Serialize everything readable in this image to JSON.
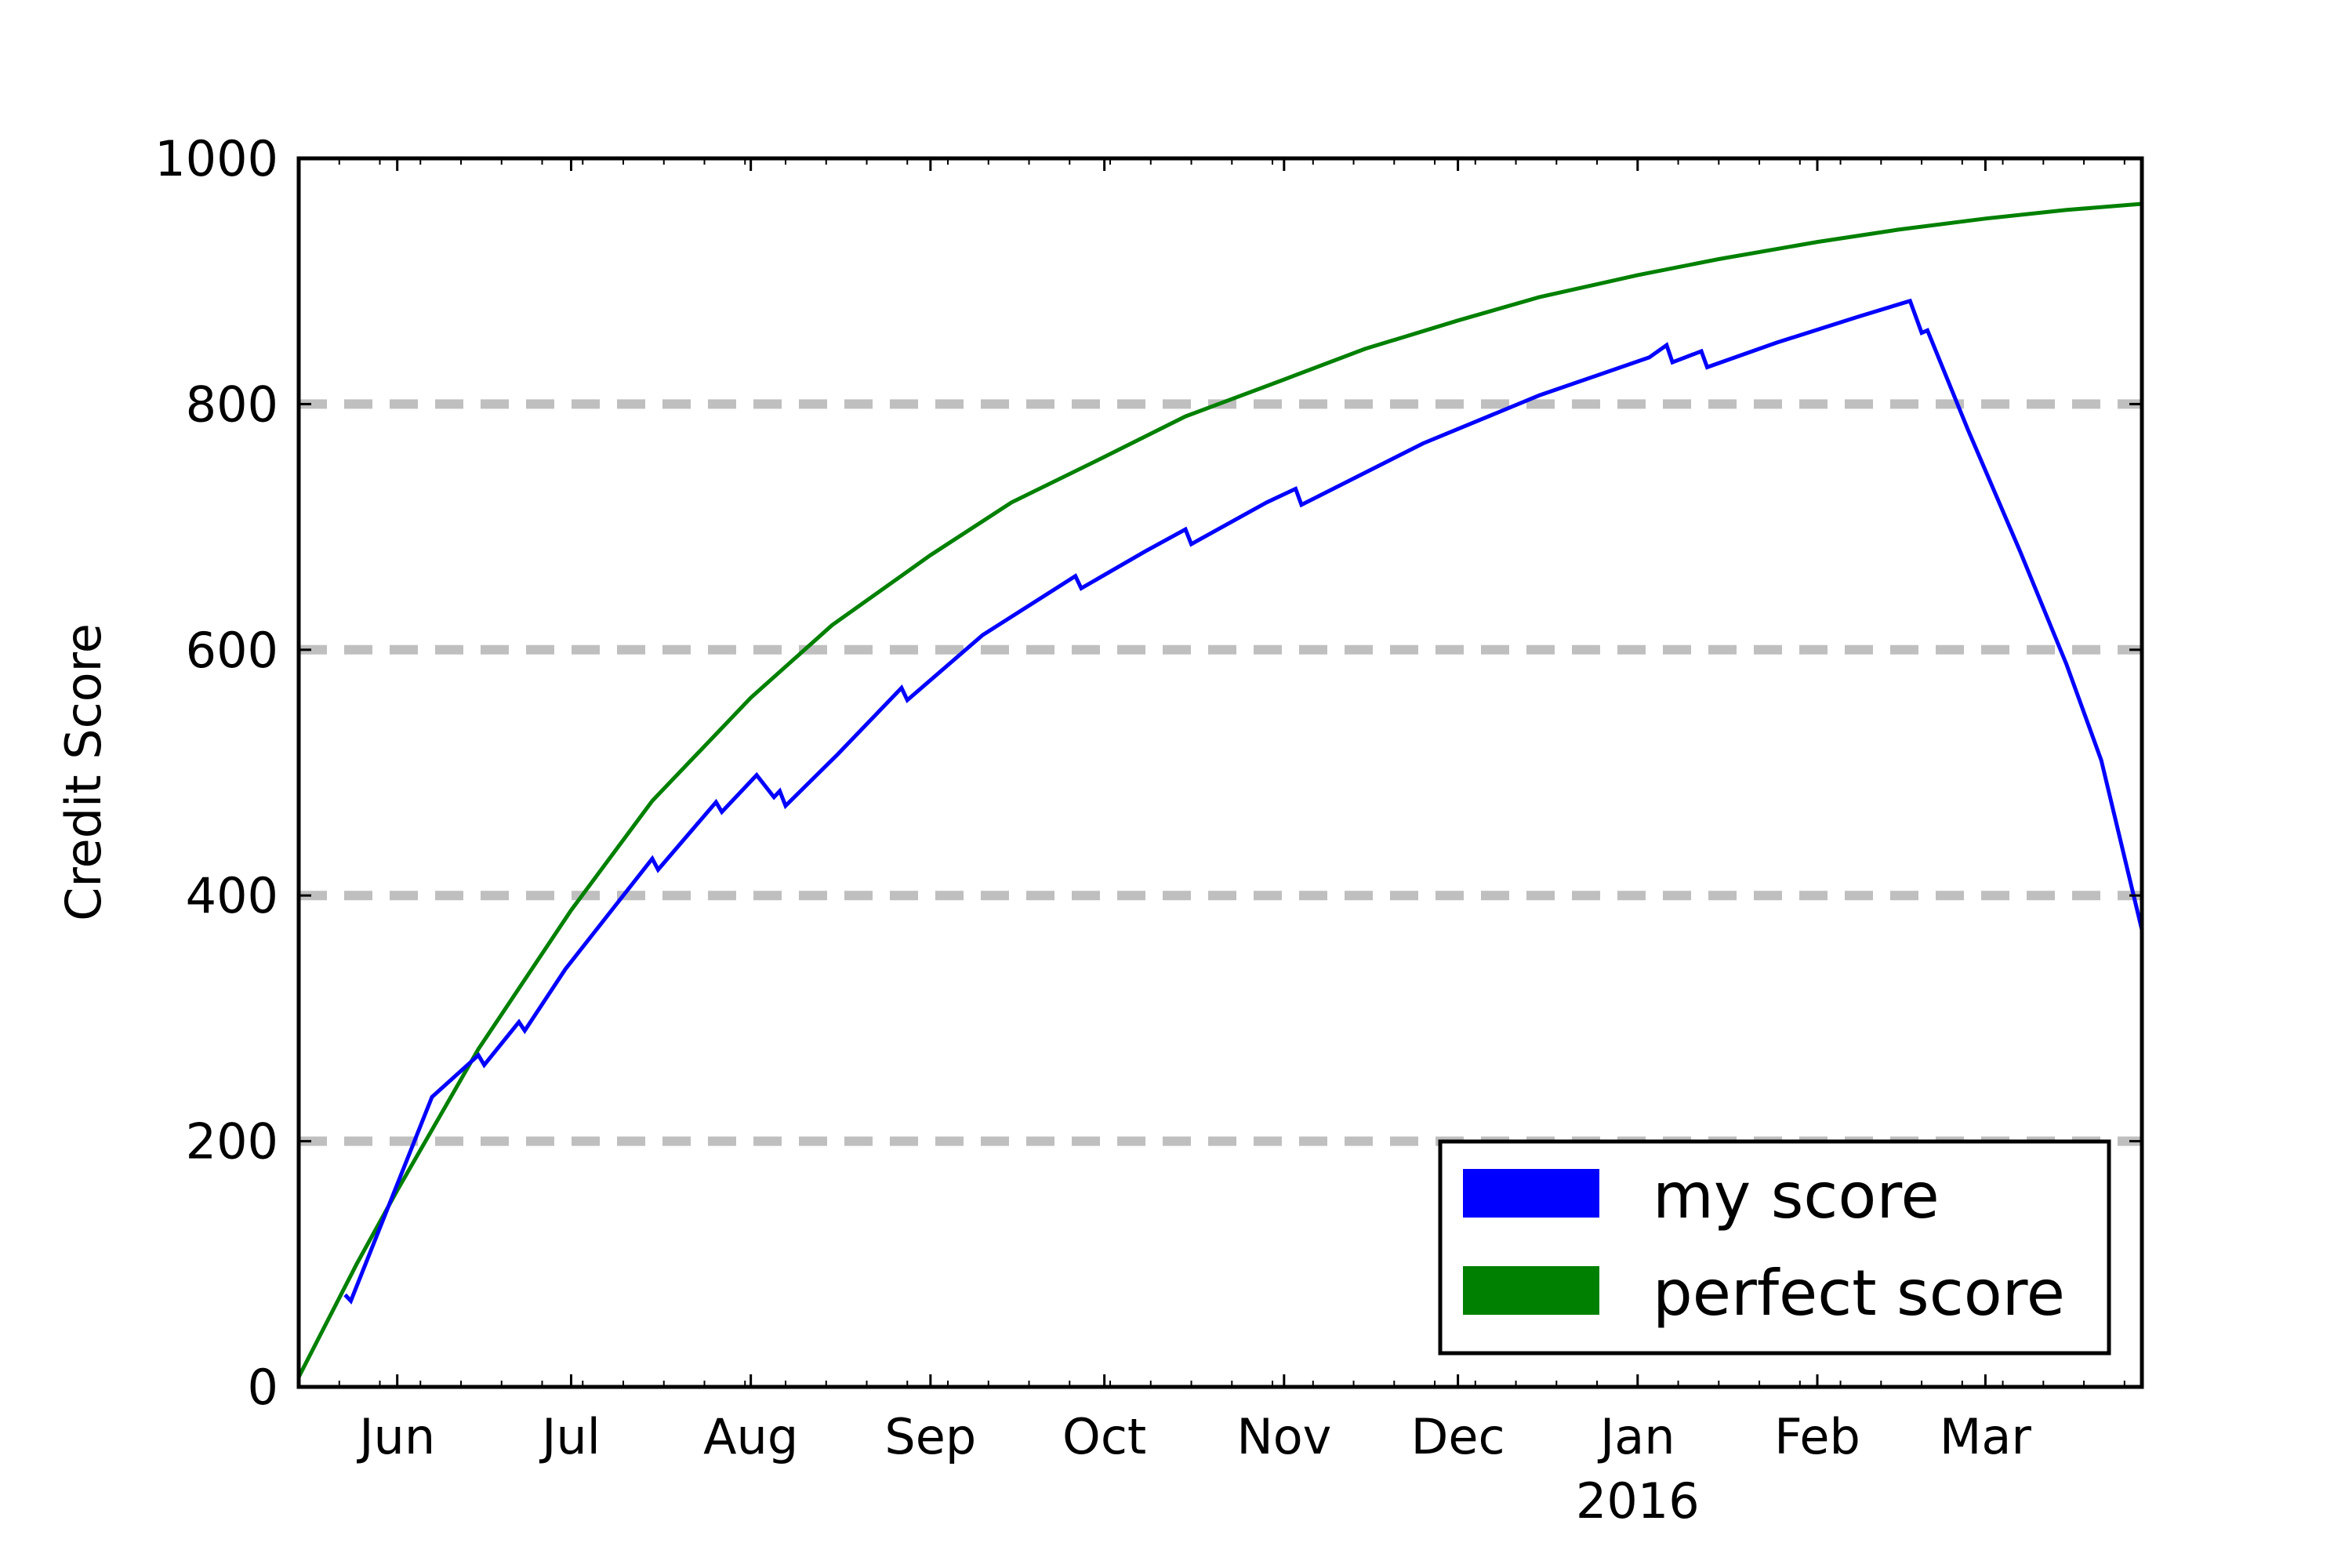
{
  "chart_data": {
    "type": "line",
    "title": "",
    "xlabel": "",
    "ylabel": "Credit Score",
    "ylim": [
      0,
      1000
    ],
    "xlim": [
      "2015-05-15",
      "2016-03-28"
    ],
    "grid": "horizontal dashed lines at y ticks",
    "legend_position": "lower-right",
    "y_ticks": [
      {
        "value": 0,
        "label": "0"
      },
      {
        "value": 200,
        "label": "200"
      },
      {
        "value": 400,
        "label": "400"
      },
      {
        "value": 600,
        "label": "600"
      },
      {
        "value": 800,
        "label": "800"
      },
      {
        "value": 1000,
        "label": "1000"
      }
    ],
    "x_ticks": [
      {
        "date": "2015-06-01",
        "label": "Jun"
      },
      {
        "date": "2015-07-01",
        "label": "Jul"
      },
      {
        "date": "2015-08-01",
        "label": "Aug"
      },
      {
        "date": "2015-09-01",
        "label": "Sep"
      },
      {
        "date": "2015-10-01",
        "label": "Oct"
      },
      {
        "date": "2015-11-01",
        "label": "Nov"
      },
      {
        "date": "2015-12-01",
        "label": "Dec"
      },
      {
        "date": "2016-01-01",
        "label": "Jan"
      },
      {
        "date": "2016-02-01",
        "label": "Feb"
      },
      {
        "date": "2016-03-01",
        "label": "Mar"
      }
    ],
    "x_sublabel": {
      "date": "2016-01-01",
      "label": "2016"
    },
    "series": [
      {
        "name": "my score",
        "color": "#0000ff",
        "points": [
          [
            "2015-05-23",
            75
          ],
          [
            "2015-05-24",
            70
          ],
          [
            "2015-06-07",
            236
          ],
          [
            "2015-06-15",
            270
          ],
          [
            "2015-06-16",
            262
          ],
          [
            "2015-06-22",
            297
          ],
          [
            "2015-06-23",
            290
          ],
          [
            "2015-06-30",
            340
          ],
          [
            "2015-07-08",
            388
          ],
          [
            "2015-07-15",
            430
          ],
          [
            "2015-07-16",
            421
          ],
          [
            "2015-07-26",
            476
          ],
          [
            "2015-07-27",
            468
          ],
          [
            "2015-08-02",
            498
          ],
          [
            "2015-08-05",
            480
          ],
          [
            "2015-08-06",
            485
          ],
          [
            "2015-08-07",
            473
          ],
          [
            "2015-08-16",
            515
          ],
          [
            "2015-08-27",
            569
          ],
          [
            "2015-08-28",
            559
          ],
          [
            "2015-09-10",
            612
          ],
          [
            "2015-09-26",
            660
          ],
          [
            "2015-09-27",
            650
          ],
          [
            "2015-10-08",
            680
          ],
          [
            "2015-10-15",
            698
          ],
          [
            "2015-10-16",
            686
          ],
          [
            "2015-10-29",
            720
          ],
          [
            "2015-11-03",
            731
          ],
          [
            "2015-11-04",
            718
          ],
          [
            "2015-11-25",
            768
          ],
          [
            "2015-12-15",
            807
          ],
          [
            "2016-01-03",
            838
          ],
          [
            "2016-01-06",
            848
          ],
          [
            "2016-01-07",
            834
          ],
          [
            "2016-01-12",
            843
          ],
          [
            "2016-01-13",
            830
          ],
          [
            "2016-01-25",
            850
          ],
          [
            "2016-02-08",
            871
          ],
          [
            "2016-02-17",
            884
          ],
          [
            "2016-02-19",
            858
          ],
          [
            "2016-02-20",
            860
          ],
          [
            "2016-02-27",
            779
          ],
          [
            "2016-03-07",
            680
          ],
          [
            "2016-03-15",
            588
          ],
          [
            "2016-03-21",
            510
          ],
          [
            "2016-03-28",
            372
          ]
        ]
      },
      {
        "name": "perfect score",
        "color": "#008000",
        "points": [
          [
            "2015-05-15",
            8
          ],
          [
            "2015-05-25",
            100
          ],
          [
            "2015-06-01",
            160
          ],
          [
            "2015-06-15",
            275
          ],
          [
            "2015-07-01",
            388
          ],
          [
            "2015-07-15",
            477
          ],
          [
            "2015-08-01",
            561
          ],
          [
            "2015-08-15",
            620
          ],
          [
            "2015-09-01",
            677
          ],
          [
            "2015-09-15",
            720
          ],
          [
            "2015-10-01",
            757
          ],
          [
            "2015-10-15",
            790
          ],
          [
            "2015-11-01",
            820
          ],
          [
            "2015-11-15",
            845
          ],
          [
            "2015-12-01",
            868
          ],
          [
            "2015-12-15",
            887
          ],
          [
            "2016-01-01",
            905
          ],
          [
            "2016-01-15",
            918
          ],
          [
            "2016-02-01",
            932
          ],
          [
            "2016-02-15",
            942
          ],
          [
            "2016-03-01",
            951
          ],
          [
            "2016-03-15",
            958
          ],
          [
            "2016-03-28",
            963
          ]
        ]
      }
    ]
  }
}
